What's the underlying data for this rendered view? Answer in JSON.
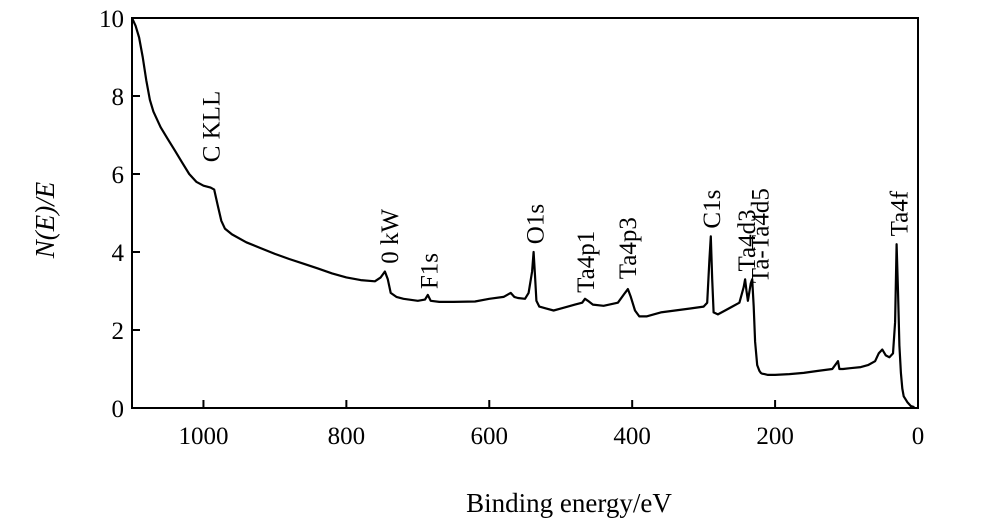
{
  "chart_data": {
    "type": "line",
    "title": "",
    "xlabel": "Binding energy/eV",
    "ylabel": "N(E)/E",
    "xlim": [
      1100,
      0
    ],
    "ylim": [
      0,
      10
    ],
    "x_reversed": true,
    "grid": false,
    "xticks": [
      1000,
      800,
      600,
      400,
      200,
      0
    ],
    "yticks": [
      0,
      2,
      4,
      6,
      8,
      10
    ],
    "series": [
      {
        "x": [
          1100,
          1095,
          1090,
          1085,
          1080,
          1075,
          1070,
          1060,
          1050,
          1040,
          1030,
          1020,
          1010,
          1000,
          990,
          985,
          980,
          975,
          970,
          960,
          940,
          920,
          900,
          880,
          860,
          840,
          820,
          800,
          780,
          760,
          752,
          746,
          742,
          738,
          730,
          720,
          700,
          690,
          686,
          682,
          670,
          650,
          620,
          600,
          580,
          570,
          565,
          560,
          550,
          545,
          540,
          538,
          536,
          534,
          530,
          520,
          510,
          500,
          490,
          480,
          470,
          466,
          462,
          455,
          440,
          420,
          410,
          406,
          402,
          396,
          390,
          380,
          370,
          360,
          340,
          320,
          300,
          295,
          292,
          290,
          288,
          286,
          280,
          270,
          260,
          250,
          244,
          242,
          240,
          238,
          234,
          232,
          230,
          228,
          225,
          222,
          220,
          218,
          215,
          210,
          200,
          180,
          160,
          140,
          120,
          112,
          110,
          105,
          95,
          80,
          70,
          60,
          55,
          50,
          45,
          40,
          35,
          32,
          30,
          28,
          26,
          24,
          22,
          20,
          15,
          10,
          5
        ],
        "y": [
          10.0,
          9.8,
          9.5,
          9.0,
          8.4,
          7.9,
          7.6,
          7.2,
          6.9,
          6.6,
          6.3,
          6.0,
          5.8,
          5.7,
          5.65,
          5.6,
          5.2,
          4.8,
          4.6,
          4.45,
          4.25,
          4.1,
          3.95,
          3.82,
          3.7,
          3.58,
          3.45,
          3.35,
          3.28,
          3.25,
          3.35,
          3.5,
          3.3,
          2.95,
          2.85,
          2.8,
          2.75,
          2.78,
          2.9,
          2.75,
          2.72,
          2.72,
          2.73,
          2.8,
          2.85,
          2.95,
          2.85,
          2.82,
          2.8,
          2.95,
          3.5,
          4.0,
          3.4,
          2.75,
          2.6,
          2.55,
          2.5,
          2.55,
          2.6,
          2.65,
          2.7,
          2.8,
          2.75,
          2.65,
          2.62,
          2.7,
          2.95,
          3.05,
          2.85,
          2.5,
          2.35,
          2.35,
          2.4,
          2.45,
          2.5,
          2.55,
          2.6,
          2.7,
          3.8,
          4.4,
          3.3,
          2.45,
          2.4,
          2.5,
          2.6,
          2.7,
          3.1,
          3.3,
          3.0,
          2.75,
          3.2,
          3.3,
          2.6,
          1.7,
          1.1,
          0.95,
          0.9,
          0.88,
          0.87,
          0.85,
          0.85,
          0.87,
          0.9,
          0.95,
          1.0,
          1.2,
          1.0,
          1.0,
          1.02,
          1.05,
          1.1,
          1.2,
          1.4,
          1.5,
          1.35,
          1.3,
          1.4,
          2.2,
          4.2,
          3.0,
          1.6,
          0.9,
          0.5,
          0.3,
          0.15,
          0.05,
          0.02
        ]
      }
    ],
    "annotations": [
      {
        "text": "C KLL",
        "x": 990,
        "y": 6.3
      },
      {
        "text": "0 kW",
        "x": 740,
        "y": 3.7
      },
      {
        "text": "F1s",
        "x": 685,
        "y": 3.05
      },
      {
        "text": "O1s",
        "x": 537,
        "y": 4.2
      },
      {
        "text": "Ta4p1",
        "x": 466,
        "y": 2.95
      },
      {
        "text": "Ta4p3",
        "x": 407,
        "y": 3.3
      },
      {
        "text": "C1s",
        "x": 290,
        "y": 4.6
      },
      {
        "text": "Ta4d3",
        "x": 241,
        "y": 3.5
      },
      {
        "text": "Ta-Ta4d5",
        "x": 222,
        "y": 3.2
      },
      {
        "text": "Ta4f",
        "x": 27,
        "y": 4.4
      }
    ]
  }
}
